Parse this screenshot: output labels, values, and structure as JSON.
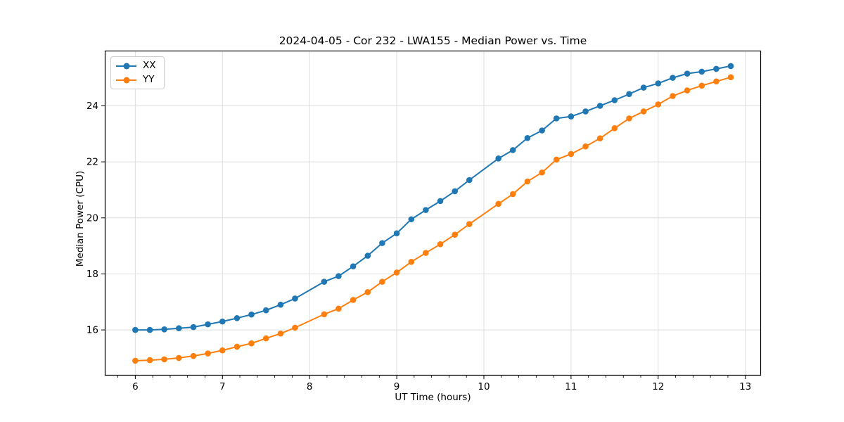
{
  "chart_data": {
    "type": "line",
    "title": "2024-04-05 - Cor 232 - LWA155 - Median Power vs. Time",
    "xlabel": "UT Time (hours)",
    "ylabel": "Median Power (CPU)",
    "xlim": [
      5.65,
      13.18
    ],
    "ylim": [
      14.37,
      25.97
    ],
    "xticks": [
      6,
      7,
      8,
      9,
      10,
      11,
      12,
      13
    ],
    "yticks": [
      16,
      18,
      20,
      22,
      24
    ],
    "x_minor_tick_step": 0.2,
    "grid": true,
    "legend_position": "upper left",
    "background_color": "#ffffff",
    "grid_color": "#dedede",
    "x": [
      6.0,
      6.167,
      6.333,
      6.5,
      6.667,
      6.833,
      7.0,
      7.167,
      7.333,
      7.5,
      7.667,
      7.833,
      8.167,
      8.333,
      8.5,
      8.667,
      8.833,
      9.0,
      9.167,
      9.333,
      9.5,
      9.667,
      9.833,
      10.167,
      10.333,
      10.5,
      10.667,
      10.833,
      11.0,
      11.167,
      11.333,
      11.5,
      11.667,
      11.833,
      12.0,
      12.167,
      12.333,
      12.5,
      12.667,
      12.833
    ],
    "series": [
      {
        "name": "XX",
        "color": "#1f77b4",
        "values": [
          16.0,
          16.0,
          16.02,
          16.06,
          16.1,
          16.2,
          16.3,
          16.42,
          16.55,
          16.7,
          16.9,
          17.12,
          17.72,
          17.92,
          18.27,
          18.65,
          19.1,
          19.45,
          19.95,
          20.28,
          20.6,
          20.95,
          21.35,
          22.12,
          22.42,
          22.85,
          23.12,
          23.55,
          23.62,
          23.8,
          24.0,
          24.2,
          24.42,
          24.65,
          24.8,
          25.0,
          25.15,
          25.22,
          25.32,
          25.42
        ]
      },
      {
        "name": "YY",
        "color": "#ff7f0e",
        "values": [
          14.9,
          14.92,
          14.95,
          15.0,
          15.07,
          15.16,
          15.27,
          15.4,
          15.52,
          15.7,
          15.87,
          16.08,
          16.56,
          16.76,
          17.07,
          17.35,
          17.72,
          18.05,
          18.43,
          18.75,
          19.06,
          19.4,
          19.78,
          20.5,
          20.85,
          21.3,
          21.62,
          22.08,
          22.28,
          22.55,
          22.84,
          23.2,
          23.55,
          23.8,
          24.05,
          24.35,
          24.55,
          24.72,
          24.87,
          25.02
        ]
      }
    ]
  }
}
